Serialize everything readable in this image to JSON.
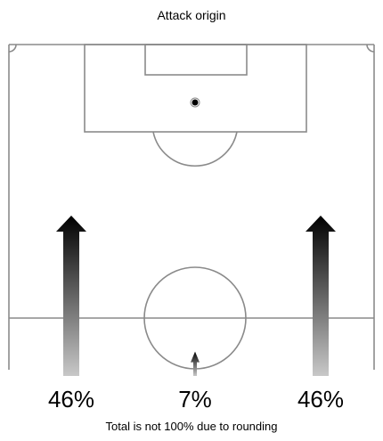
{
  "chart_data": {
    "type": "pitch-arrows",
    "title": "Attack origin",
    "series": [
      {
        "zone": "left",
        "label": "46%",
        "value": 46
      },
      {
        "zone": "center",
        "label": "7%",
        "value": 7
      },
      {
        "zone": "right",
        "label": "46%",
        "value": 46
      }
    ],
    "footnote": "Total is not 100% due to rounding"
  },
  "colors": {
    "pitch_line": "#8a8a8a",
    "arrow_top": "#000000",
    "arrow_bottom": "#c8c8c8"
  }
}
